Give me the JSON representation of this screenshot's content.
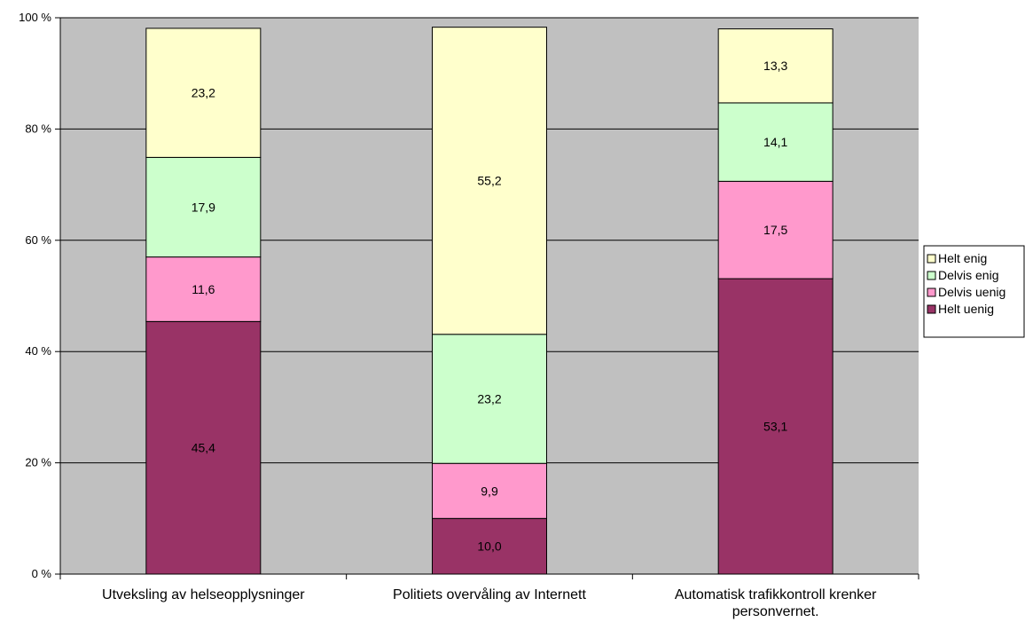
{
  "chart_data": {
    "type": "bar",
    "stacked": true,
    "percent_stacked": true,
    "categories": [
      [
        "Utveksling av helseopplysninger"
      ],
      [
        "Politiets overvåling av Internett"
      ],
      [
        "Automatisk trafikkontroll krenker",
        "personvernet."
      ]
    ],
    "series": [
      {
        "name": "Helt uenig",
        "color": "#993366",
        "values": [
          45.4,
          10.0,
          53.1
        ],
        "labels": [
          "45,4",
          "10,0",
          "53,1"
        ]
      },
      {
        "name": "Delvis uenig",
        "color": "#FF99CC",
        "values": [
          11.6,
          9.9,
          17.5
        ],
        "labels": [
          "11,6",
          "9,9",
          "17,5"
        ]
      },
      {
        "name": "Delvis enig",
        "color": "#CCFFCC",
        "values": [
          17.9,
          23.2,
          14.1
        ],
        "labels": [
          "17,9",
          "23,2",
          "14,1"
        ]
      },
      {
        "name": "Helt enig",
        "color": "#FFFFCC",
        "values": [
          23.2,
          55.2,
          13.3
        ],
        "labels": [
          "23,2",
          "55,2",
          "13,3"
        ]
      }
    ],
    "y_ticks": [
      "0 %",
      "20 %",
      "40 %",
      "60 %",
      "80 %",
      "100 %"
    ],
    "ylim": [
      0,
      100
    ],
    "grid": true,
    "plot_background": "#C0C0C0",
    "legend_position": "right",
    "legend_order": [
      "Helt enig",
      "Delvis enig",
      "Delvis uenig",
      "Helt uenig"
    ]
  }
}
